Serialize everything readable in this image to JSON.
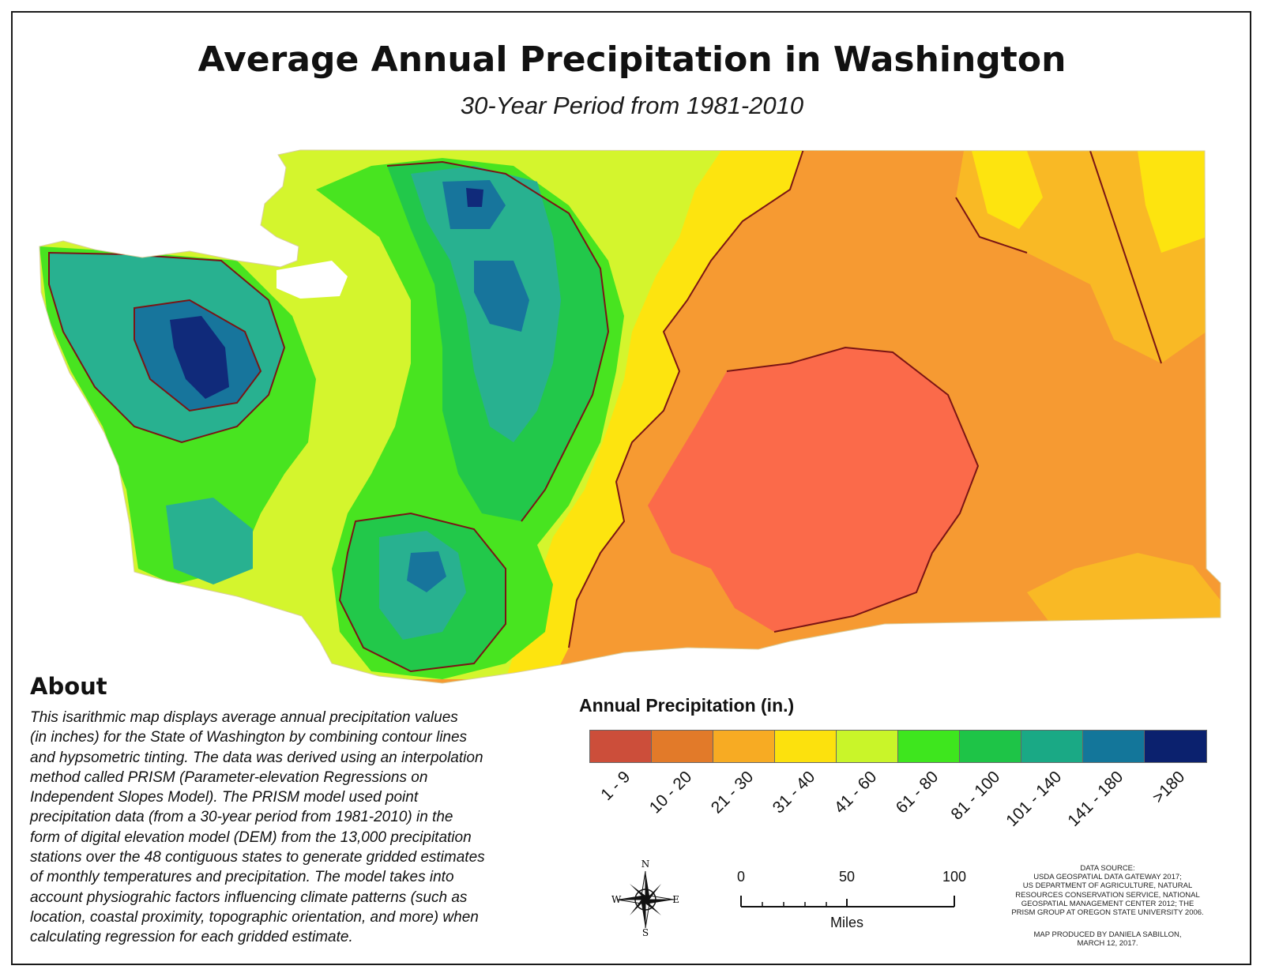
{
  "header": {
    "title": "Average Annual Precipitation in Washington",
    "subtitle": "30-Year Period from 1981-2010"
  },
  "about": {
    "heading": "About",
    "lines": [
      "This isarithmic map displays average annual precipitation values",
      "(in inches) for the State of Washington by combining contour lines",
      "and hypsometric tinting. The data was derived using an interpolation",
      "method called PRISM (Parameter-elevation Regressions on",
      "Independent Slopes Model). The PRISM model used point",
      "precipitation data (from a 30-year period from 1981-2010) in the",
      "form of digital elevation model (DEM) from the 13,000 precipitation",
      "stations over the 48 contiguous states to generate gridded estimates",
      "of monthly temperatures and precipitation. The model takes into",
      "account physiograhic factors influencing climate patterns (such as",
      "location, coastal proximity, topographic orientation, and more) when",
      "calculating regression for each gridded estimate."
    ]
  },
  "legend": {
    "title": "Annual Precipitation (in.)",
    "classes": [
      {
        "label": "1 - 9",
        "color": "#cc4e3a"
      },
      {
        "label": "10 - 20",
        "color": "#e27a29"
      },
      {
        "label": "21 - 30",
        "color": "#f7ab23"
      },
      {
        "label": "31 - 40",
        "color": "#fce10d"
      },
      {
        "label": "41 - 60",
        "color": "#c9f529"
      },
      {
        "label": "61 - 80",
        "color": "#3ee61e"
      },
      {
        "label": "81 - 100",
        "color": "#1ec447"
      },
      {
        "label": "101 - 140",
        "color": "#1aa985"
      },
      {
        "label": "141 - 180",
        "color": "#13769a"
      },
      {
        "label": ">180",
        "color": "#0b216e"
      }
    ]
  },
  "map_colors": {
    "driest": "#fb6a4a",
    "dry": "#f69a32",
    "semi_dry": "#f9b925",
    "moderate": "#fde40f",
    "lime": "#d4f52d",
    "wet": "#48e420",
    "wetter": "#22c84a",
    "very_wet": "#28b190",
    "extreme": "#17759c",
    "max": "#102a7a",
    "contour": "#7a1515"
  },
  "scale_bar": {
    "ticks": [
      "0",
      "50",
      "100"
    ],
    "unit": "Miles"
  },
  "compass": {
    "n": "N",
    "s": "S",
    "e": "E",
    "w": "W"
  },
  "data_source": {
    "lines": [
      "DATA SOURCE:",
      "USDA GEOSPATIAL DATA GATEWAY 2017;",
      "US DEPARTMENT OF AGRICULTURE, NATURAL",
      "RESOURCES CONSERVATION SERVICE, NATIONAL",
      "GEOSPATIAL MANAGEMENT CENTER 2012; THE",
      "PRISM GROUP AT OREGON STATE UNIVERSITY 2006."
    ]
  },
  "credit": {
    "lines": [
      "MAP PRODUCED BY DANIELA SABILLON,",
      "MARCH 12, 2017."
    ]
  }
}
